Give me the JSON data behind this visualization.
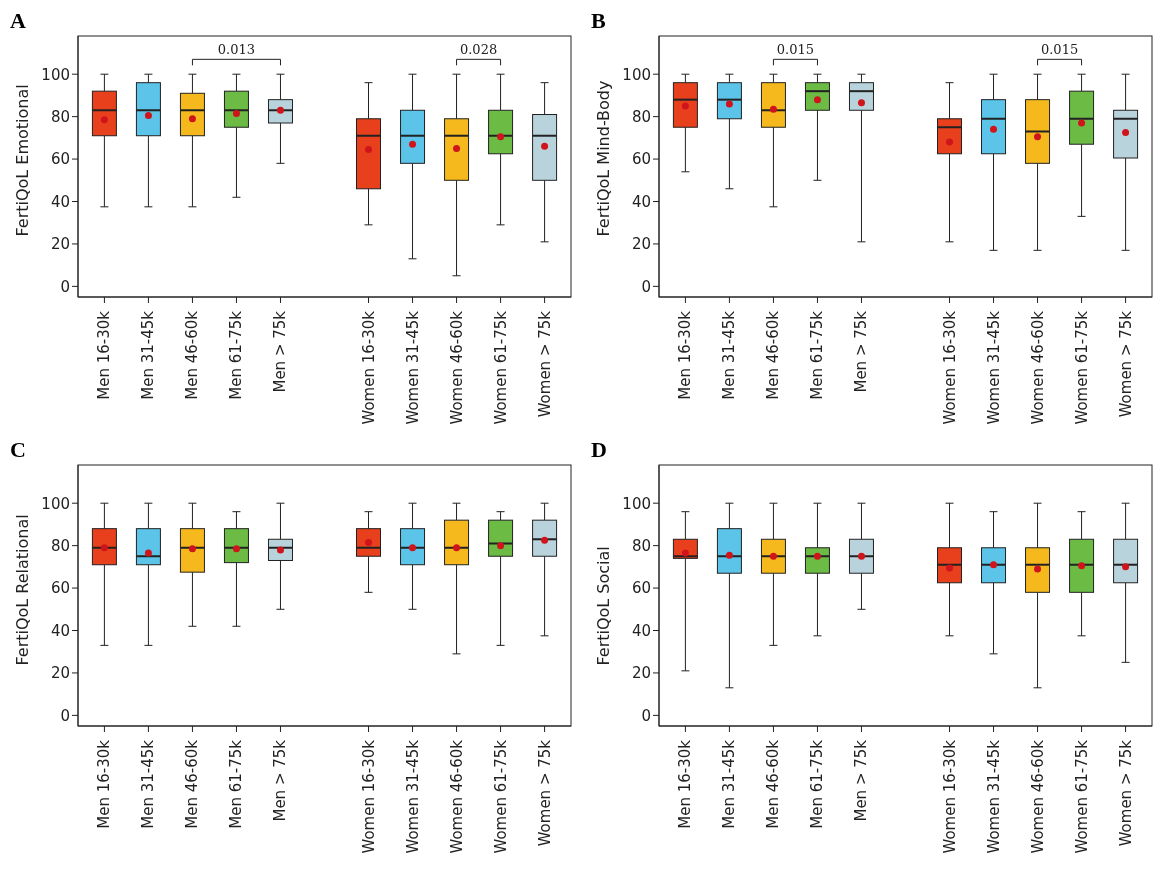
{
  "chart_data": [
    {
      "type": "box",
      "title": "A",
      "ylabel": "FertiQoL Emotional",
      "categories": [
        "Men 16-30k",
        "Men 31-45k",
        "Men 46-60k",
        "Men 61-75k",
        "Men > 75k",
        null,
        "Women 16-30k",
        "Women 31-45k",
        "Women 46-60k",
        "Women 61-75k",
        "Women > 75k"
      ],
      "colors": [
        "#e8401c",
        "#5bc4e8",
        "#f5b91e",
        "#6cbb45",
        "#b9d3dd",
        null,
        "#e8401c",
        "#5bc4e8",
        "#f5b91e",
        "#6cbb45",
        "#b9d3dd"
      ],
      "boxes": [
        {
          "low": 37.5,
          "q1": 71,
          "median": 83,
          "q3": 92,
          "high": 100,
          "mean": 78.5
        },
        {
          "low": 37.5,
          "q1": 71,
          "median": 83,
          "q3": 96,
          "high": 100,
          "mean": 80.5
        },
        {
          "low": 37.5,
          "q1": 71,
          "median": 83,
          "q3": 91,
          "high": 100,
          "mean": 79
        },
        {
          "low": 42,
          "q1": 75,
          "median": 83,
          "q3": 92,
          "high": 100,
          "mean": 81.5
        },
        {
          "low": 58,
          "q1": 77,
          "median": 83,
          "q3": 88,
          "high": 100,
          "mean": 83
        },
        null,
        {
          "low": 29,
          "q1": 46,
          "median": 71,
          "q3": 79,
          "high": 96,
          "mean": 64.5
        },
        {
          "low": 13,
          "q1": 58,
          "median": 71,
          "q3": 83,
          "high": 100,
          "mean": 67
        },
        {
          "low": 5,
          "q1": 50,
          "median": 71,
          "q3": 79,
          "high": 100,
          "mean": 65
        },
        {
          "low": 29,
          "q1": 62.5,
          "median": 71,
          "q3": 83,
          "high": 100,
          "mean": 70.5
        },
        {
          "low": 21,
          "q1": 50,
          "median": 71,
          "q3": 81,
          "high": 96,
          "mean": 66
        }
      ],
      "ylim": [
        -5,
        118
      ],
      "yticks": [
        0,
        20,
        40,
        60,
        80,
        100
      ],
      "annotations": [
        "0.013",
        "0.028"
      ]
    },
    {
      "type": "box",
      "title": "B",
      "ylabel": "FertiQoL Mind-Body",
      "categories": [
        "Men 16-30k",
        "Men 31-45k",
        "Men 46-60k",
        "Men 61-75k",
        "Men > 75k",
        null,
        "Women 16-30k",
        "Women 31-45k",
        "Women 46-60k",
        "Women 61-75k",
        "Women > 75k"
      ],
      "colors": [
        "#e8401c",
        "#5bc4e8",
        "#f5b91e",
        "#6cbb45",
        "#b9d3dd",
        null,
        "#e8401c",
        "#5bc4e8",
        "#f5b91e",
        "#6cbb45",
        "#b9d3dd"
      ],
      "boxes": [
        {
          "low": 54,
          "q1": 75,
          "median": 88,
          "q3": 96,
          "high": 100,
          "mean": 85
        },
        {
          "low": 46,
          "q1": 79,
          "median": 88,
          "q3": 96,
          "high": 100,
          "mean": 86
        },
        {
          "low": 37.5,
          "q1": 75,
          "median": 83,
          "q3": 96,
          "high": 100,
          "mean": 83.5
        },
        {
          "low": 50,
          "q1": 83,
          "median": 92,
          "q3": 96,
          "high": 100,
          "mean": 88
        },
        {
          "low": 21,
          "q1": 83,
          "median": 92,
          "q3": 96,
          "high": 100,
          "mean": 86.5
        },
        null,
        {
          "low": 21,
          "q1": 62.5,
          "median": 75,
          "q3": 79,
          "high": 96,
          "mean": 68
        },
        {
          "low": 17,
          "q1": 62.5,
          "median": 79,
          "q3": 88,
          "high": 100,
          "mean": 74
        },
        {
          "low": 17,
          "q1": 58,
          "median": 73,
          "q3": 88,
          "high": 100,
          "mean": 70.5
        },
        {
          "low": 33,
          "q1": 67,
          "median": 79,
          "q3": 92,
          "high": 100,
          "mean": 77
        },
        {
          "low": 17,
          "q1": 60.5,
          "median": 79,
          "q3": 83,
          "high": 100,
          "mean": 72.5
        }
      ],
      "ylim": [
        -5,
        118
      ],
      "yticks": [
        0,
        20,
        40,
        60,
        80,
        100
      ],
      "annotations": [
        "0.015",
        "0.015"
      ]
    },
    {
      "type": "box",
      "title": "C",
      "ylabel": "FertiQoL Relational",
      "categories": [
        "Men 16-30k",
        "Men 31-45k",
        "Men 46-60k",
        "Men 61-75k",
        "Men > 75k",
        null,
        "Women 16-30k",
        "Women 31-45k",
        "Women 46-60k",
        "Women 61-75k",
        "Women > 75k"
      ],
      "colors": [
        "#e8401c",
        "#5bc4e8",
        "#f5b91e",
        "#6cbb45",
        "#b9d3dd",
        null,
        "#e8401c",
        "#5bc4e8",
        "#f5b91e",
        "#6cbb45",
        "#b9d3dd"
      ],
      "boxes": [
        {
          "low": 33,
          "q1": 71,
          "median": 79,
          "q3": 88,
          "high": 100,
          "mean": 79
        },
        {
          "low": 33,
          "q1": 71,
          "median": 75,
          "q3": 88,
          "high": 100,
          "mean": 76.5
        },
        {
          "low": 42,
          "q1": 67.5,
          "median": 79,
          "q3": 88,
          "high": 100,
          "mean": 78.5
        },
        {
          "low": 42,
          "q1": 72,
          "median": 79,
          "q3": 88,
          "high": 96,
          "mean": 78.5
        },
        {
          "low": 50,
          "q1": 73,
          "median": 79,
          "q3": 83,
          "high": 100,
          "mean": 78
        },
        null,
        {
          "low": 58,
          "q1": 75,
          "median": 79,
          "q3": 88,
          "high": 96,
          "mean": 81.5
        },
        {
          "low": 50,
          "q1": 71,
          "median": 79,
          "q3": 88,
          "high": 100,
          "mean": 79
        },
        {
          "low": 29,
          "q1": 71,
          "median": 79,
          "q3": 92,
          "high": 100,
          "mean": 79
        },
        {
          "low": 33,
          "q1": 75,
          "median": 81,
          "q3": 92,
          "high": 96,
          "mean": 80
        },
        {
          "low": 37.5,
          "q1": 75,
          "median": 83,
          "q3": 92,
          "high": 100,
          "mean": 82.5
        }
      ],
      "ylim": [
        -5,
        118
      ],
      "yticks": [
        0,
        20,
        40,
        60,
        80,
        100
      ]
    },
    {
      "type": "box",
      "title": "D",
      "ylabel": "FertiQoL Social",
      "categories": [
        "Men 16-30k",
        "Men 31-45k",
        "Men 46-60k",
        "Men 61-75k",
        "Men > 75k",
        null,
        "Women 16-30k",
        "Women 31-45k",
        "Women 46-60k",
        "Women 61-75k",
        "Women > 75k"
      ],
      "colors": [
        "#e8401c",
        "#5bc4e8",
        "#f5b91e",
        "#6cbb45",
        "#b9d3dd",
        null,
        "#e8401c",
        "#5bc4e8",
        "#f5b91e",
        "#6cbb45",
        "#b9d3dd"
      ],
      "boxes": [
        {
          "low": 21,
          "q1": 74,
          "median": 75,
          "q3": 83,
          "high": 96,
          "mean": 76.5
        },
        {
          "low": 13,
          "q1": 67,
          "median": 75,
          "q3": 88,
          "high": 100,
          "mean": 75.5
        },
        {
          "low": 33,
          "q1": 67,
          "median": 75,
          "q3": 83,
          "high": 100,
          "mean": 75
        },
        {
          "low": 37.5,
          "q1": 67,
          "median": 75,
          "q3": 79,
          "high": 100,
          "mean": 75
        },
        {
          "low": 50,
          "q1": 67,
          "median": 75,
          "q3": 83,
          "high": 100,
          "mean": 75
        },
        null,
        {
          "low": 37.5,
          "q1": 62.5,
          "median": 71,
          "q3": 79,
          "high": 100,
          "mean": 69.5
        },
        {
          "low": 29,
          "q1": 62.5,
          "median": 71,
          "q3": 79,
          "high": 96,
          "mean": 71
        },
        {
          "low": 13,
          "q1": 58,
          "median": 71,
          "q3": 79,
          "high": 100,
          "mean": 69
        },
        {
          "low": 37.5,
          "q1": 58,
          "median": 71,
          "q3": 83,
          "high": 96,
          "mean": 70.5
        },
        {
          "low": 25,
          "q1": 62.5,
          "median": 71,
          "q3": 83,
          "high": 100,
          "mean": 70
        }
      ],
      "ylim": [
        -5,
        118
      ],
      "yticks": [
        0,
        20,
        40,
        60,
        80,
        100
      ]
    }
  ]
}
